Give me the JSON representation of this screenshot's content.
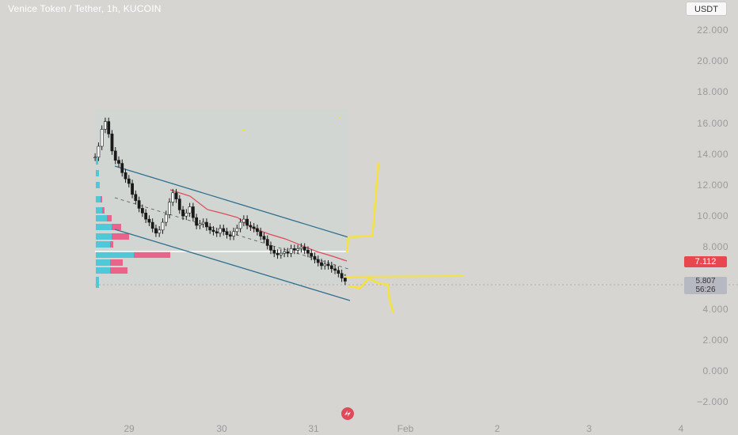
{
  "header": {
    "title": "Venice Token / Tether, 1h, KUCOIN",
    "currency_button": "USDT"
  },
  "price_tags": {
    "current": "7.112",
    "last": "5.807",
    "countdown": "56:26"
  },
  "colors": {
    "up": "#ffffff",
    "down": "#1a1a1a",
    "channel": "#2f6f8f",
    "ema": "#e0495a",
    "annotation": "#f5e23a",
    "profile_buy": "#4fc8d8",
    "profile_sell": "#e8648a"
  },
  "chart_data": {
    "type": "candlestick",
    "title": "Venice Token / Tether, 1h, KUCOIN",
    "y_axis": {
      "ticks": [
        "22.000",
        "20.000",
        "18.000",
        "16.000",
        "14.000",
        "12.000",
        "10.000",
        "8.000",
        "4.000",
        "2.000",
        "0.000",
        "−2.000"
      ],
      "range": [
        -2.5,
        23
      ]
    },
    "x_axis": {
      "ticks": [
        "29",
        "30",
        "31",
        "Feb",
        "2",
        "3",
        "4"
      ]
    },
    "close_series": [
      13.8,
      14.5,
      15.6,
      16.1,
      15.3,
      14.2,
      13.6,
      13.4,
      12.8,
      12.4,
      12.1,
      11.4,
      11.0,
      10.5,
      10.2,
      9.8,
      9.6,
      9.2,
      8.9,
      9.1,
      9.6,
      10.1,
      10.9,
      11.5,
      11.1,
      10.4,
      10.0,
      10.2,
      10.6,
      9.9,
      9.4,
      9.5,
      9.6,
      9.3,
      9.1,
      9.0,
      8.9,
      9.2,
      9.0,
      8.8,
      8.7,
      9.0,
      9.2,
      9.6,
      9.8,
      9.4,
      9.3,
      9.2,
      9.0,
      8.7,
      8.5,
      8.1,
      7.8,
      7.6,
      7.5,
      7.6,
      7.7,
      7.6,
      7.9,
      7.8,
      7.9,
      8.0,
      7.8,
      7.6,
      7.4,
      7.2,
      7.0,
      6.8,
      6.9,
      6.8,
      6.6,
      6.5,
      6.3,
      6.0,
      5.8
    ],
    "current_price": 7.112,
    "last_price": 5.807
  }
}
